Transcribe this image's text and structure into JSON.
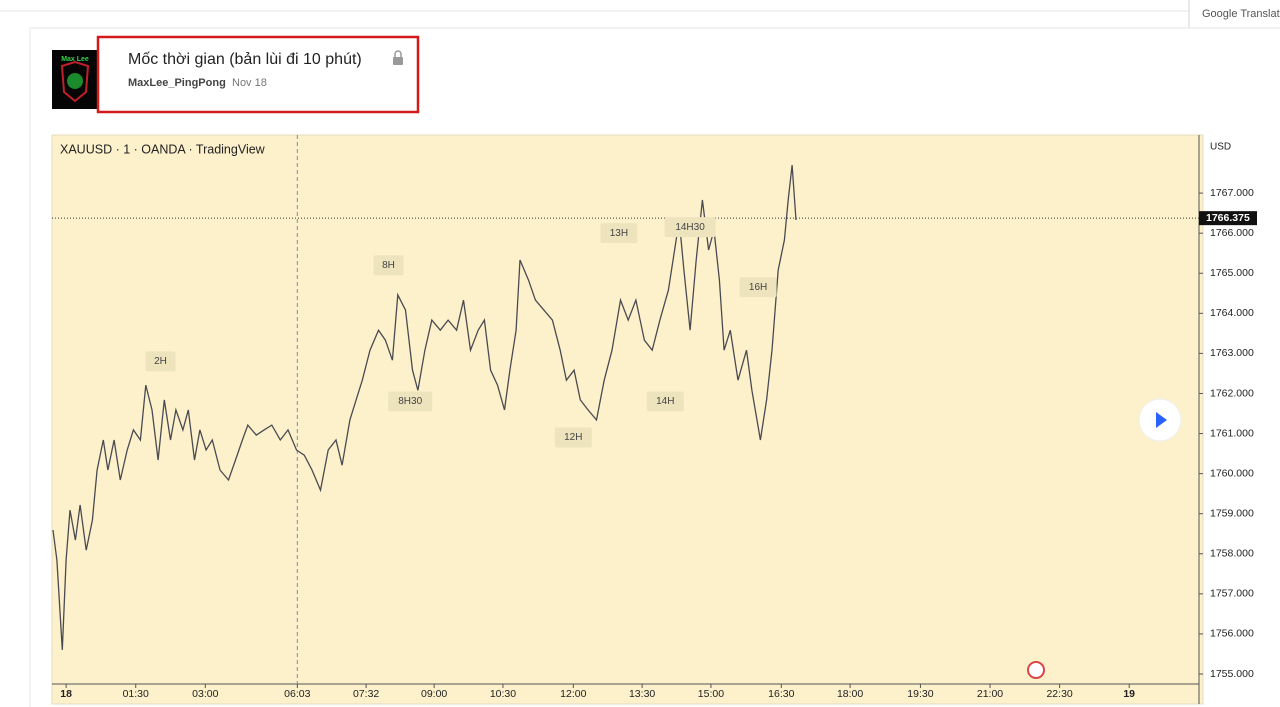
{
  "header": {
    "avatar_text": "Max Lee",
    "title": "Mốc thời gian (bản lùi đi 10 phút)",
    "author": "MaxLee_PingPong",
    "date": "Nov 18"
  },
  "translate_button": "Google Translate",
  "chart_data": {
    "type": "line",
    "title": "XAUUSD · 1 · OANDA · TradingView",
    "y_axis_label": "USD",
    "color": "#4a4a52",
    "xlim": [
      -17,
      1464
    ],
    "ylim": [
      1754.85,
      1768.4
    ],
    "xticks": [
      {
        "value": 0,
        "label": "18"
      },
      {
        "value": 90,
        "label": "01:30"
      },
      {
        "value": 180,
        "label": "03:00"
      },
      {
        "value": 299,
        "label": "06:03"
      },
      {
        "value": 388,
        "label": "07:32"
      },
      {
        "value": 476,
        "label": "09:00"
      },
      {
        "value": 565,
        "label": "10:30"
      },
      {
        "value": 656,
        "label": "12:00"
      },
      {
        "value": 745,
        "label": "13:30"
      },
      {
        "value": 834,
        "label": "15:00"
      },
      {
        "value": 925,
        "label": "16:30"
      },
      {
        "value": 1014,
        "label": "18:00"
      },
      {
        "value": 1105,
        "label": "19:30"
      },
      {
        "value": 1195,
        "label": "21:00"
      },
      {
        "value": 1285,
        "label": "22:30"
      },
      {
        "value": 1375,
        "label": "19"
      }
    ],
    "yticks": [
      {
        "value": 1755,
        "label": "1755.000"
      },
      {
        "value": 1756,
        "label": "1756.000"
      },
      {
        "value": 1757,
        "label": "1757.000"
      },
      {
        "value": 1758,
        "label": "1758.000"
      },
      {
        "value": 1759,
        "label": "1759.000"
      },
      {
        "value": 1760,
        "label": "1760.000"
      },
      {
        "value": 1761,
        "label": "1761.000"
      },
      {
        "value": 1762,
        "label": "1762.000"
      },
      {
        "value": 1763,
        "label": "1763.000"
      },
      {
        "value": 1764,
        "label": "1764.000"
      },
      {
        "value": 1765,
        "label": "1765.000"
      },
      {
        "value": 1766,
        "label": "1766.000"
      },
      {
        "value": 1767,
        "label": "1767.000"
      }
    ],
    "last_price": 1766.375,
    "x": [
      -17,
      -12,
      -5,
      0,
      5,
      12,
      18,
      26,
      34,
      40,
      48,
      54,
      62,
      70,
      79,
      87,
      96,
      103,
      111,
      119,
      127,
      135,
      142,
      151,
      158,
      166,
      173,
      181,
      189,
      199,
      210,
      219,
      228,
      235,
      246,
      256,
      266,
      277,
      287,
      298,
      308,
      318,
      329,
      339,
      349,
      357,
      367,
      375,
      383,
      393,
      404,
      413,
      422,
      429,
      439,
      448,
      455,
      464,
      473,
      484,
      494,
      505,
      514,
      523,
      533,
      541,
      549,
      558,
      567,
      574,
      582,
      587,
      598,
      607,
      618,
      629,
      639,
      647,
      657,
      665,
      675,
      686,
      696,
      706,
      717,
      727,
      737,
      748,
      758,
      768,
      779,
      787,
      793,
      799,
      807,
      815,
      823,
      831,
      838,
      845,
      851,
      859,
      869,
      880,
      887,
      898,
      906,
      913,
      921,
      929,
      934,
      939,
      944
    ],
    "values": [
      1758.59,
      1757.84,
      1755.6,
      1757.84,
      1759.09,
      1758.34,
      1759.22,
      1758.09,
      1758.84,
      1760.09,
      1760.84,
      1760.09,
      1760.84,
      1759.84,
      1760.59,
      1761.09,
      1760.84,
      1762.21,
      1761.59,
      1760.34,
      1761.84,
      1760.84,
      1761.59,
      1761.09,
      1761.59,
      1760.34,
      1761.09,
      1760.59,
      1760.84,
      1760.09,
      1759.84,
      1760.34,
      1760.84,
      1761.21,
      1760.96,
      1761.09,
      1761.21,
      1760.84,
      1761.09,
      1760.59,
      1760.46,
      1760.09,
      1759.59,
      1760.59,
      1760.84,
      1760.21,
      1761.34,
      1761.84,
      1762.33,
      1763.08,
      1763.58,
      1763.33,
      1762.83,
      1764.46,
      1764.08,
      1762.58,
      1762.08,
      1763.08,
      1763.83,
      1763.58,
      1763.83,
      1763.58,
      1764.33,
      1763.08,
      1763.58,
      1763.83,
      1762.58,
      1762.21,
      1761.59,
      1762.58,
      1763.58,
      1765.33,
      1764.83,
      1764.33,
      1764.08,
      1763.83,
      1763.08,
      1762.33,
      1762.58,
      1761.84,
      1761.59,
      1761.34,
      1762.33,
      1763.08,
      1764.33,
      1763.83,
      1764.33,
      1763.33,
      1763.08,
      1763.83,
      1764.58,
      1765.58,
      1766.33,
      1765.08,
      1763.58,
      1765.33,
      1766.83,
      1765.58,
      1766.08,
      1764.83,
      1763.08,
      1763.58,
      1762.33,
      1763.08,
      1762.08,
      1760.84,
      1761.84,
      1763.08,
      1765.08,
      1765.83,
      1766.83,
      1767.7,
      1766.33
    ],
    "annotations": [
      {
        "text": "2H",
        "x": 122,
        "y": 1762.8
      },
      {
        "text": "8H",
        "x": 417,
        "y": 1765.2
      },
      {
        "text": "8H30",
        "x": 445,
        "y": 1761.8
      },
      {
        "text": "12H",
        "x": 656,
        "y": 1760.9
      },
      {
        "text": "13H",
        "x": 715,
        "y": 1766
      },
      {
        "text": "14H30",
        "x": 807,
        "y": 1766.15
      },
      {
        "text": "14H",
        "x": 775,
        "y": 1761.8
      },
      {
        "text": "16H",
        "x": 895,
        "y": 1764.65
      }
    ]
  }
}
